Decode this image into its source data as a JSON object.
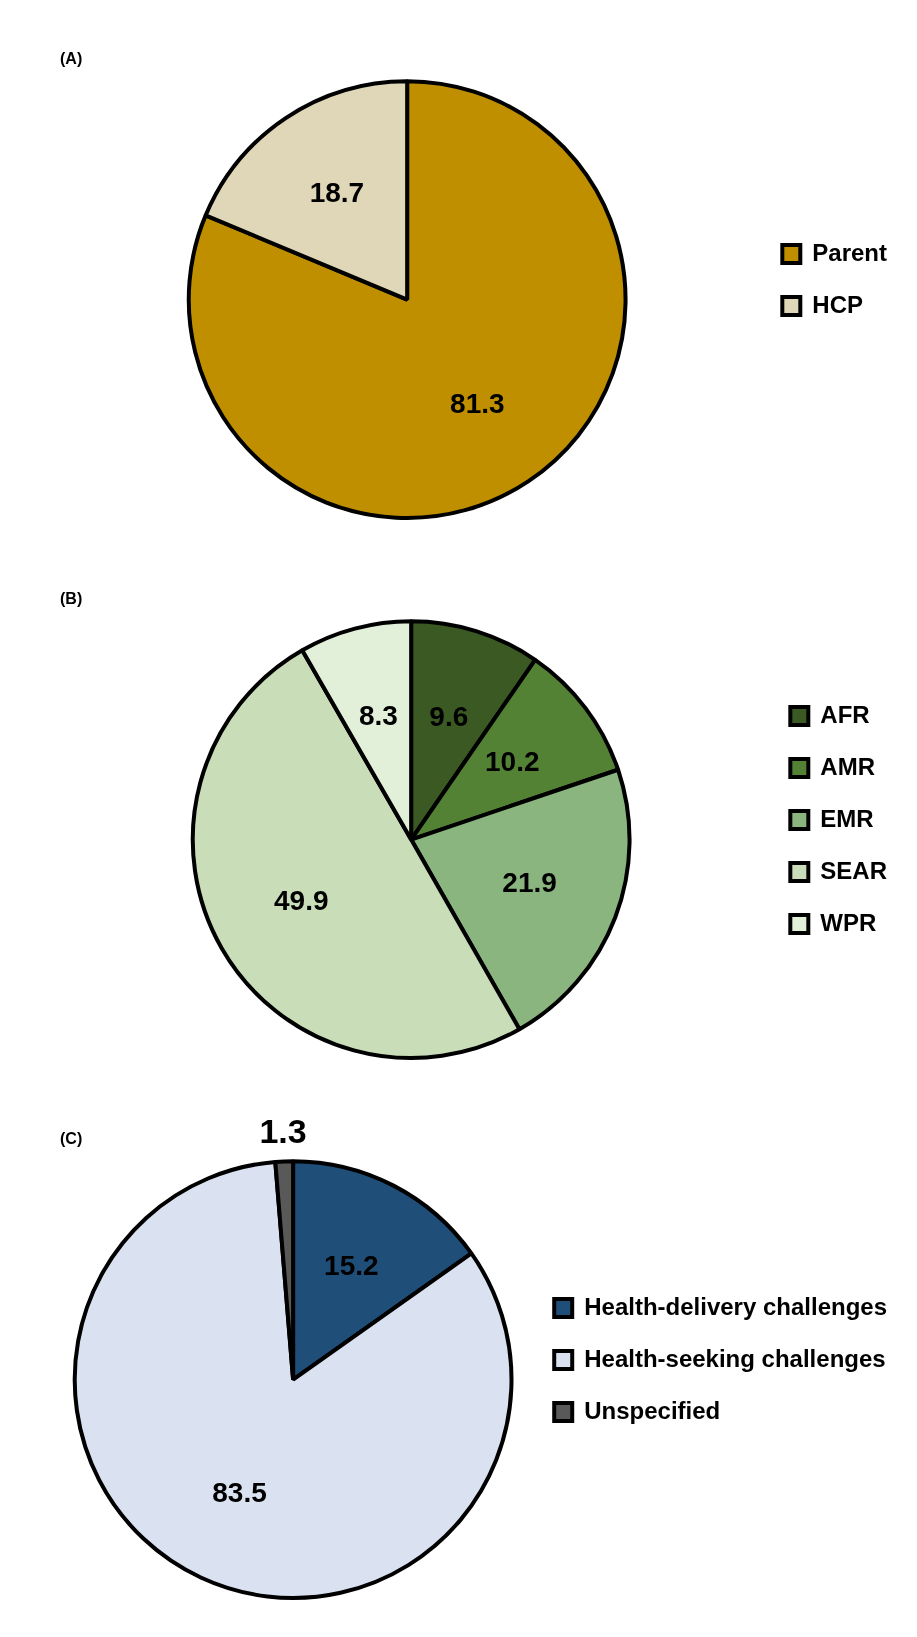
{
  "chart_data": [
    {
      "type": "pie",
      "title": "(A)",
      "categories": [
        "Parent",
        "HCP"
      ],
      "values": [
        81.3,
        18.7
      ],
      "colors": [
        "#bf8f00",
        "#e0d7b8"
      ],
      "data_labels": true,
      "legend": "right"
    },
    {
      "type": "pie",
      "title": "(B)",
      "categories": [
        "AFR",
        "AMR",
        "EMR",
        "SEAR",
        "WPR"
      ],
      "values": [
        9.6,
        10.2,
        21.9,
        49.9,
        8.3
      ],
      "colors": [
        "#3b5a23",
        "#548235",
        "#8ab57f",
        "#c8ddb8",
        "#e2f0d9"
      ],
      "data_labels": true,
      "legend": "right"
    },
    {
      "type": "pie",
      "title": "(C)",
      "categories": [
        "Health-delivery challenges",
        "Health-seeking challenges",
        "Unspecified"
      ],
      "values": [
        15.2,
        83.5,
        1.3
      ],
      "colors": [
        "#1f4e79",
        "#dae1f0",
        "#595959"
      ],
      "data_labels": true,
      "legend": "right"
    }
  ]
}
